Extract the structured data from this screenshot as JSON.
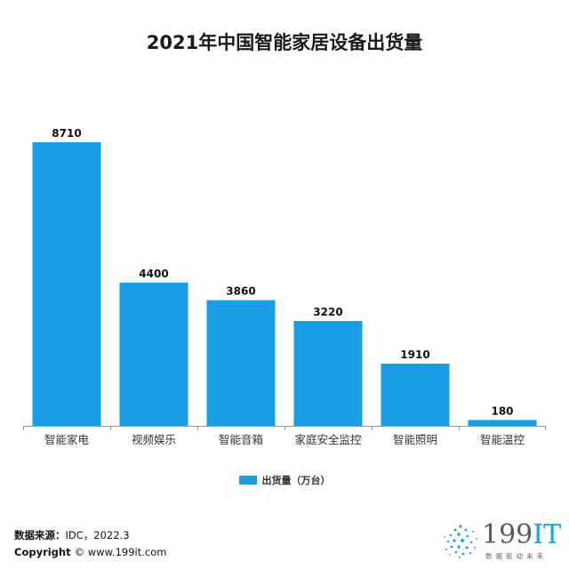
{
  "chart_data": {
    "type": "bar",
    "title": "2021年中国智能家居设备出货量",
    "categories": [
      "智能家电",
      "视频娱乐",
      "智能音箱",
      "家庭安全监控",
      "智能照明",
      "智能温控"
    ],
    "series": [
      {
        "name": "出货量（万台）",
        "values": [
          8710,
          4400,
          3860,
          3220,
          1910,
          180
        ]
      }
    ],
    "ylim": [
      0,
      8710
    ],
    "grid": false,
    "legend_position": "bottom",
    "bar_color": "#1a9ee3",
    "axis_color": "#999999"
  },
  "footer": {
    "source_label": "数据来源：",
    "source_value": "IDC，2022.3",
    "copyright_label": "Copyright",
    "copyright_value": "© www.199it.com"
  },
  "logo": {
    "main": "199",
    "accent": "IT",
    "tagline": "数据驱动未来"
  }
}
